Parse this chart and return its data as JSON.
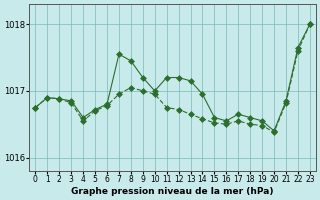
{
  "series1": {
    "x": [
      0,
      1,
      2,
      3,
      4,
      5,
      6,
      7,
      8,
      9,
      10,
      11,
      12,
      13,
      14,
      15,
      16,
      17,
      18,
      19,
      20,
      21,
      22,
      23
    ],
    "y": [
      1016.75,
      1016.9,
      1016.9,
      1016.85,
      1016.6,
      1016.75,
      1016.8,
      1017.55,
      1017.45,
      1017.2,
      1017.0,
      1017.2,
      1017.2,
      1017.15,
      1016.95,
      1016.6,
      1016.55,
      1016.65,
      1016.6,
      1016.55,
      1016.4,
      1016.85,
      1017.65,
      1018.0
    ]
  },
  "series2": {
    "x": [
      0,
      1,
      2,
      3,
      4,
      5,
      6,
      7,
      8,
      9,
      10,
      11,
      12,
      13,
      14,
      15,
      16,
      17,
      18,
      19,
      20,
      21,
      22,
      23
    ],
    "y": [
      1016.75,
      1016.9,
      1016.88,
      1016.82,
      1016.55,
      1016.72,
      1016.78,
      1017.48,
      1017.5,
      1017.22,
      1016.95,
      1016.72,
      1016.7,
      1016.65,
      1016.58,
      1016.55,
      1016.5,
      1016.6,
      1016.55,
      1016.5,
      1016.38,
      1016.82,
      1017.6,
      1018.0
    ]
  },
  "line_color": "#2d6e2d",
  "marker": "D",
  "marker_size": 3,
  "background_color": "#c8eaea",
  "grid_color": "#7ab8b8",
  "ylabel_ticks": [
    1016,
    1017,
    1018
  ],
  "xlabel_label": "Graphe pression niveau de la mer (hPa)",
  "ylim": [
    1015.8,
    1018.3
  ],
  "xlim": [
    -0.5,
    23.5
  ]
}
